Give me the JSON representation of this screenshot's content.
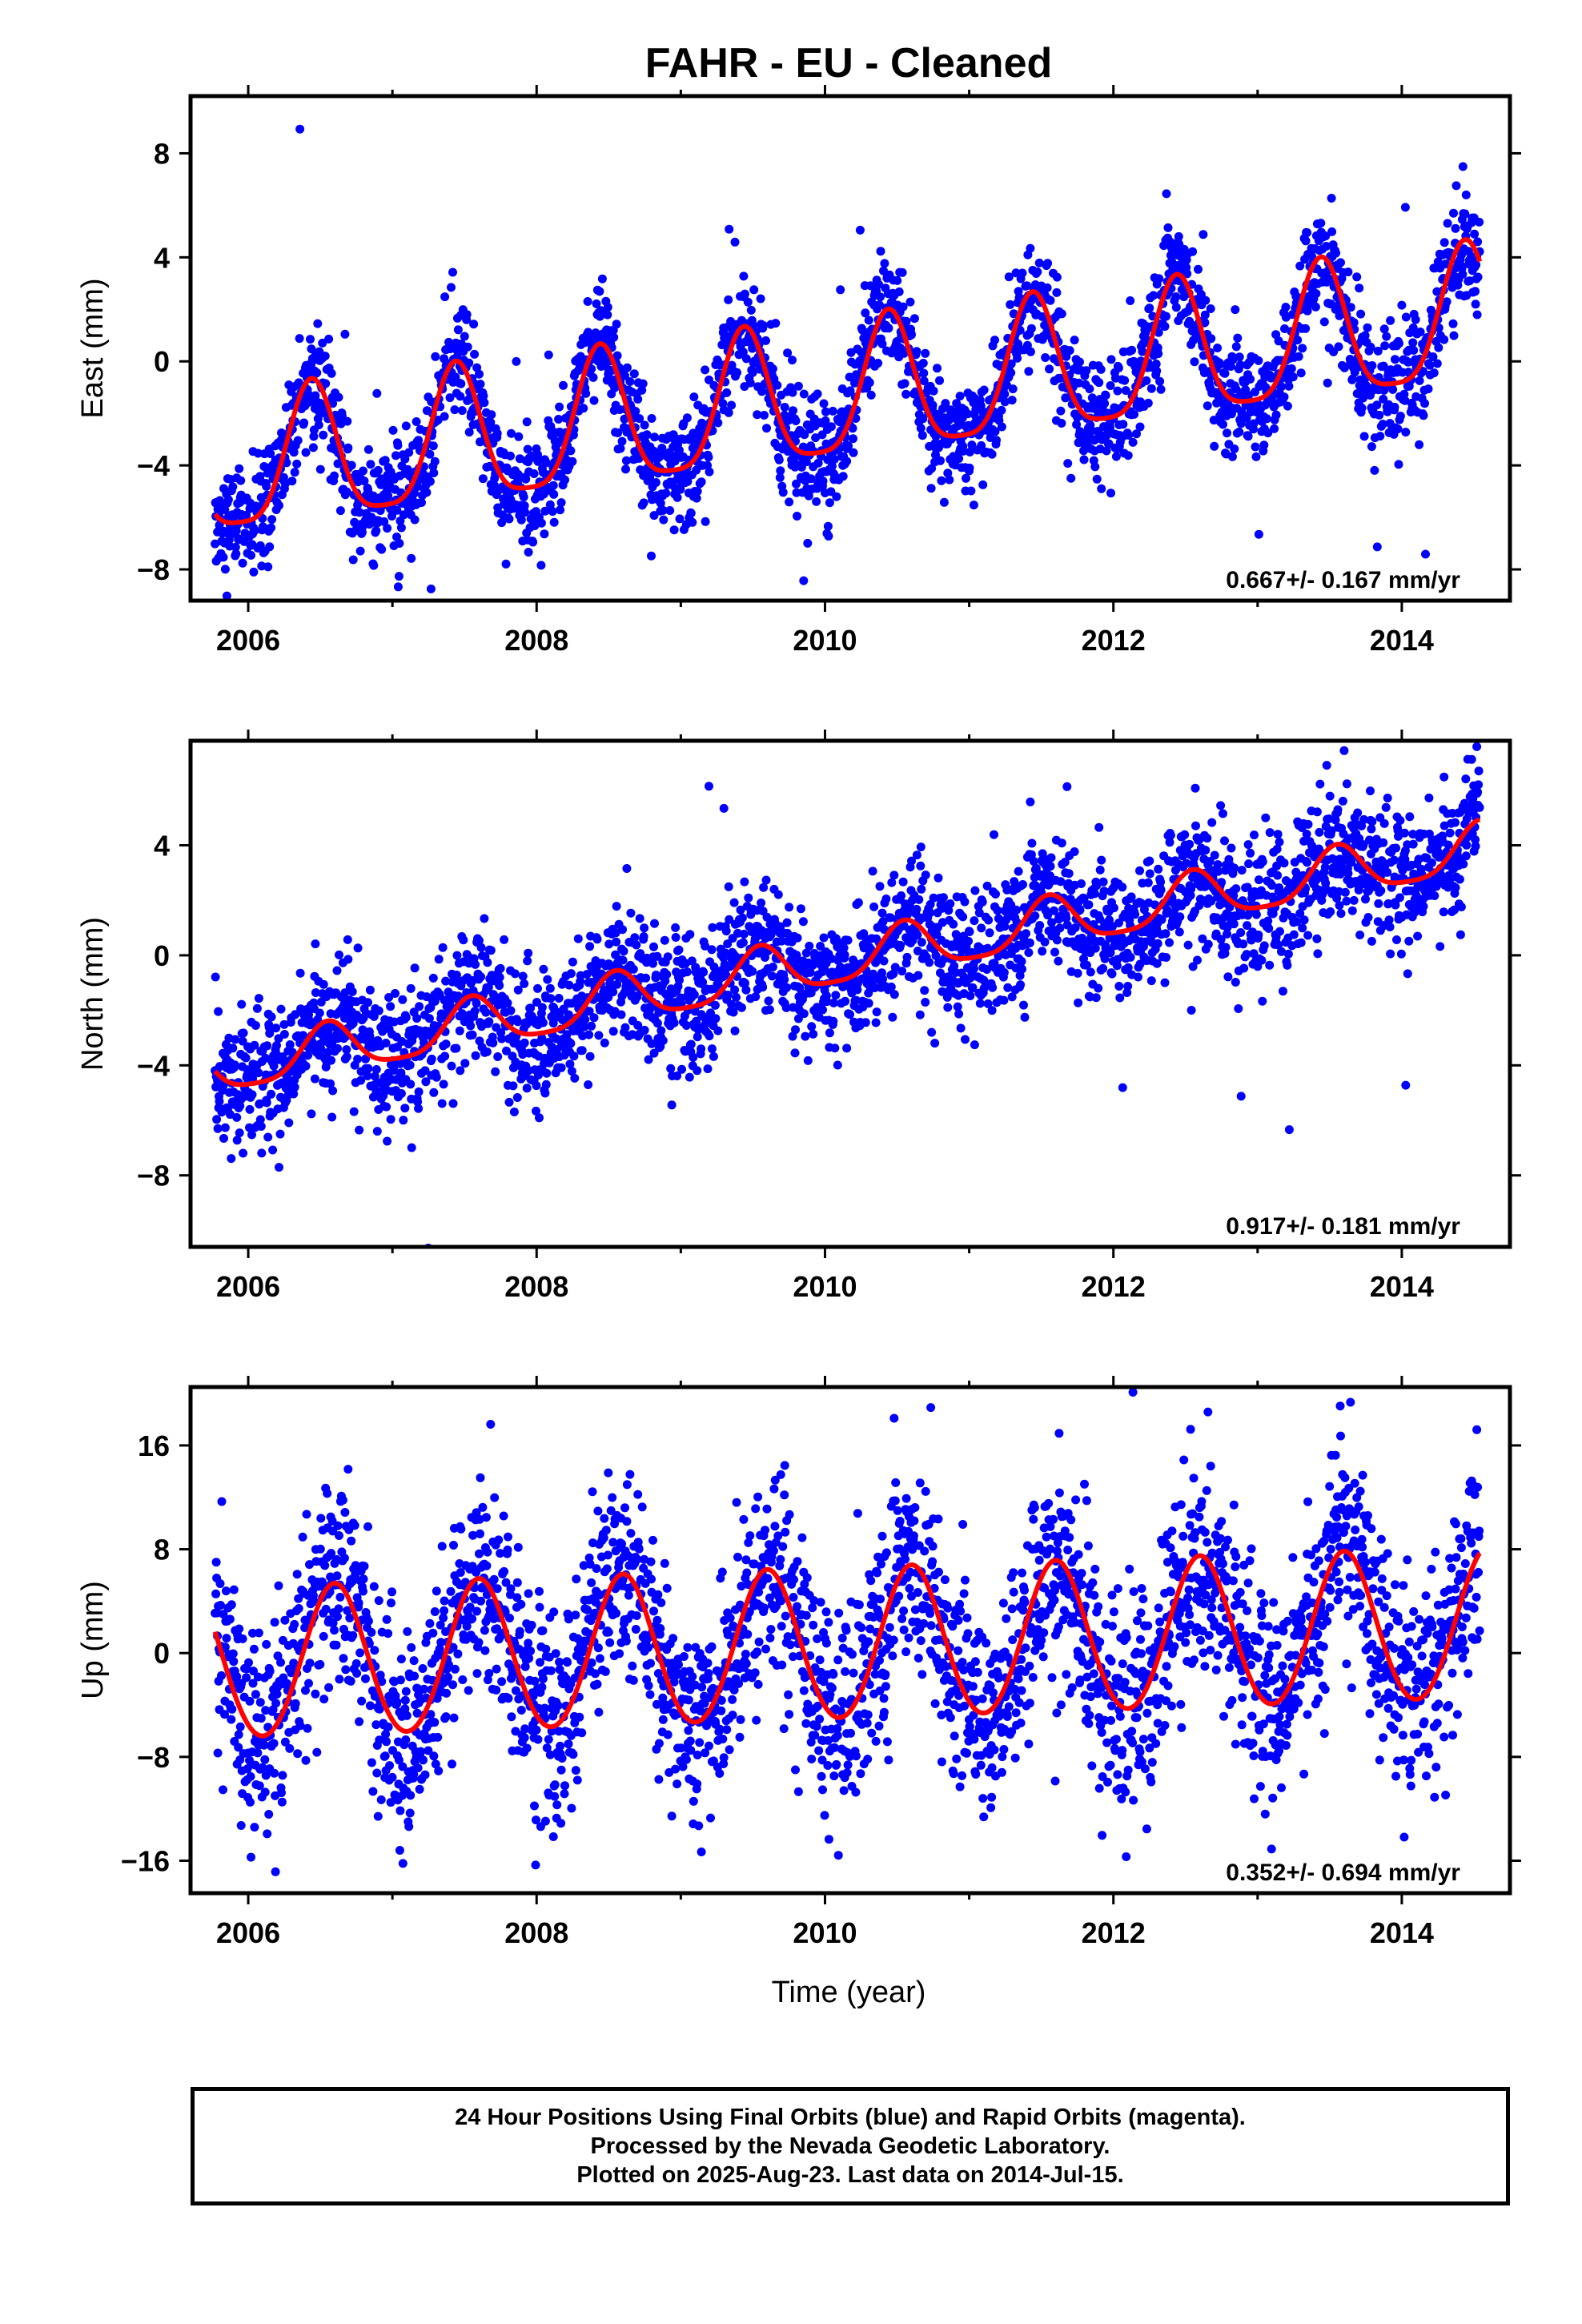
{
  "figure": {
    "title": "FAHR  - EU - Cleaned",
    "xlabel": "Time (year)"
  },
  "footer": {
    "line1": "24 Hour Positions Using Final Orbits (blue) and Rapid Orbits (magenta).",
    "line2": "Processed by the Nevada Geodetic Laboratory.",
    "line3": "Plotted on 2025-Aug-23. Last data on 2014-Jul-15."
  },
  "colors": {
    "points": "#0000ff",
    "fit": "#ff0000",
    "frame": "#000000"
  },
  "chart_data": [
    {
      "type": "scatter",
      "ylabel": "East (mm)",
      "xlim": [
        2005.6,
        2014.75
      ],
      "ylim": [
        -9.2,
        10.2
      ],
      "xticks": [
        2006,
        2008,
        2010,
        2012,
        2014
      ],
      "yticks": [
        8,
        4,
        0,
        -4,
        -8
      ],
      "rate_text": "0.667+/- 0.167 mm/yr",
      "data_start": 2005.77,
      "data_end": 2014.54,
      "fit": {
        "intercept": -4.3,
        "slope": 0.667,
        "annual_amp": 2.6,
        "peak_phase": 0.44,
        "semiannual_amp": 0.6
      },
      "series": [
        {
          "name": "Final Orbits",
          "color": "#0000ff"
        },
        {
          "name": "Fit",
          "color": "#ff0000"
        }
      ],
      "scatter_sd": 1.1
    },
    {
      "type": "scatter",
      "ylabel": "North (mm)",
      "xlim": [
        2005.6,
        2014.75
      ],
      "ylim": [
        -10.6,
        7.8
      ],
      "xticks": [
        2006,
        2008,
        2010,
        2012,
        2014
      ],
      "yticks": [
        4,
        0,
        -4,
        -8
      ],
      "rate_text": "0.917+/- 0.181 mm/yr",
      "data_start": 2005.77,
      "data_end": 2014.54,
      "fit": {
        "intercept": -4.2,
        "slope": 0.917,
        "annual_amp": 0.9,
        "peak_phase": 0.55,
        "semiannual_amp": 0.2
      },
      "series": [
        {
          "name": "Final Orbits",
          "color": "#0000ff"
        },
        {
          "name": "Fit",
          "color": "#ff0000"
        }
      ],
      "scatter_sd": 1.2
    },
    {
      "type": "scatter",
      "ylabel": "Up (mm)",
      "xlim": [
        2005.6,
        2014.75
      ],
      "ylim": [
        -18.5,
        20.5
      ],
      "xticks": [
        2006,
        2008,
        2010,
        2012,
        2014
      ],
      "yticks": [
        16,
        8,
        0,
        -8,
        -16
      ],
      "rate_text": "0.352+/- 0.694 mm/yr",
      "data_start": 2005.77,
      "data_end": 2014.54,
      "fit": {
        "intercept": -1.0,
        "slope": 0.352,
        "annual_amp": 5.8,
        "peak_phase": 0.6,
        "semiannual_amp": 0.3
      },
      "series": [
        {
          "name": "Final Orbits",
          "color": "#0000ff"
        },
        {
          "name": "Fit",
          "color": "#ff0000"
        }
      ],
      "scatter_sd": 4.0
    }
  ]
}
